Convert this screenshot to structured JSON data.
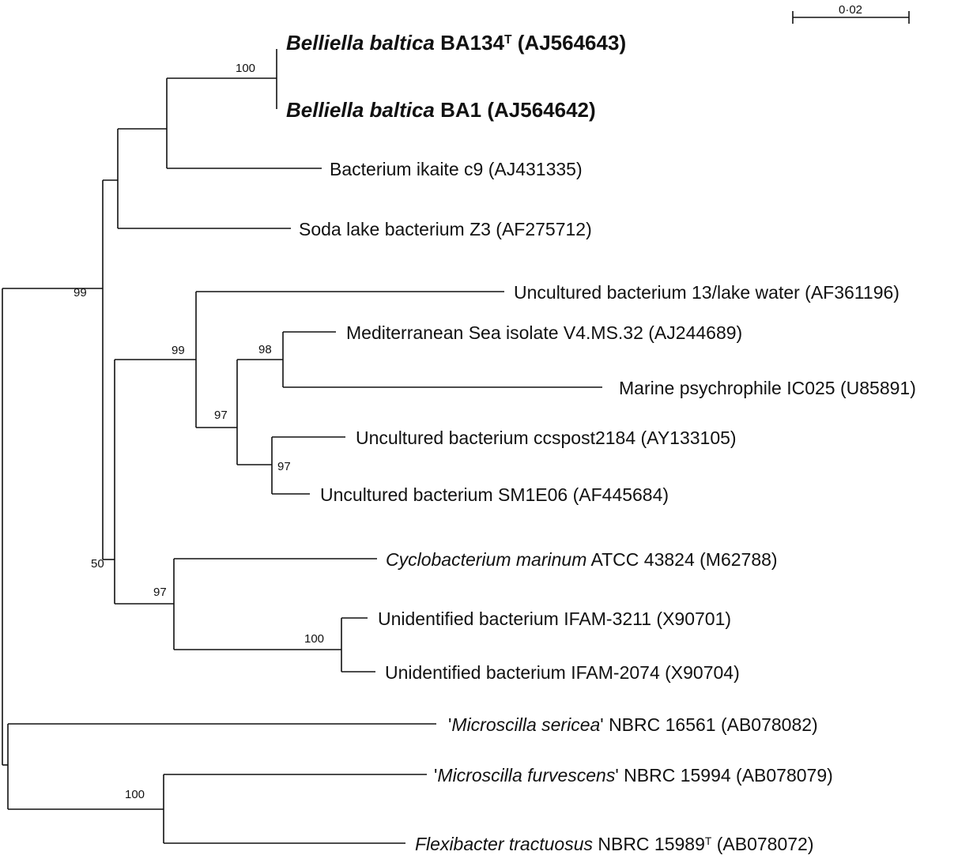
{
  "scale_bar": {
    "label": "0·02"
  },
  "leaves": [
    {
      "id": "ba134",
      "bold": true,
      "parts": [
        {
          "t": "Belliella baltica",
          "i": true
        },
        {
          "t": " BA134"
        },
        {
          "t": "T",
          "sup": true
        },
        {
          "t": " (AJ564643)"
        }
      ]
    },
    {
      "id": "ba1",
      "bold": true,
      "parts": [
        {
          "t": "Belliella baltica",
          "i": true
        },
        {
          "t": " BA1 (AJ564642)"
        }
      ]
    },
    {
      "id": "ikaite",
      "parts": [
        {
          "t": "Bacterium ikaite c9 (AJ431335)"
        }
      ]
    },
    {
      "id": "sodalake",
      "parts": [
        {
          "t": "Soda lake bacterium Z3 (AF275712)"
        }
      ]
    },
    {
      "id": "lakewater",
      "parts": [
        {
          "t": "Uncultured bacterium 13/lake water (AF361196)"
        }
      ]
    },
    {
      "id": "medsea",
      "parts": [
        {
          "t": "Mediterranean Sea isolate  V4.MS.32 (AJ244689)"
        }
      ]
    },
    {
      "id": "psychrophile",
      "parts": [
        {
          "t": "Marine psychrophile IC025 (U85891)"
        }
      ]
    },
    {
      "id": "ccspost",
      "parts": [
        {
          "t": "Uncultured bacterium ccspost2184 (AY133105)"
        }
      ]
    },
    {
      "id": "sm1e06",
      "parts": [
        {
          "t": "Uncultured bacterium SM1E06 (AF445684)"
        }
      ]
    },
    {
      "id": "cyclo",
      "parts": [
        {
          "t": "Cyclobacterium marinum",
          "i": true
        },
        {
          "t": " ATCC 43824 (M62788)"
        }
      ]
    },
    {
      "id": "ifam3211",
      "parts": [
        {
          "t": "Unidentified bacterium IFAM-3211 (X90701)"
        }
      ]
    },
    {
      "id": "ifam2074",
      "parts": [
        {
          "t": "Unidentified bacterium IFAM-2074 (X90704)"
        }
      ]
    },
    {
      "id": "sericea",
      "parts": [
        {
          "t": "'"
        },
        {
          "t": "Microscilla sericea",
          "i": true
        },
        {
          "t": "'  NBRC 16561 (AB078082)"
        }
      ]
    },
    {
      "id": "furvescens",
      "parts": [
        {
          "t": "'"
        },
        {
          "t": "Microscilla furvescens",
          "i": true
        },
        {
          "t": "' NBRC 15994 (AB078079)"
        }
      ]
    },
    {
      "id": "flexibacter",
      "parts": [
        {
          "t": "Flexibacter tractuosus",
          "i": true
        },
        {
          "t": " NBRC 15989"
        },
        {
          "t": "T",
          "sup": true
        },
        {
          "t": " (AB078072)"
        }
      ]
    }
  ],
  "bootstrap": {
    "belliella": "100",
    "n99_top": "99",
    "n99_mid": "99",
    "n98": "98",
    "n97_a": "97",
    "n97_b": "97",
    "n50": "50",
    "n97_cyclo": "97",
    "n100_ifam": "100",
    "n100_flex": "100"
  }
}
